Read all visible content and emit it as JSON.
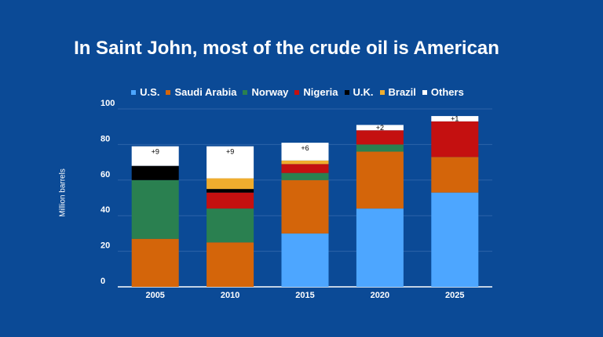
{
  "chart_data": {
    "type": "bar",
    "stacked": true,
    "title": "In Saint John, most of the crude oil is American",
    "ylabel": "Million barrels",
    "xlabel": "",
    "ylim": [
      0,
      100
    ],
    "yticks": [
      0,
      20,
      40,
      60,
      80,
      100
    ],
    "categories": [
      "2005",
      "2010",
      "2015",
      "2020",
      "2025"
    ],
    "series": [
      {
        "name": "U.S.",
        "color": "#4da6ff",
        "values": [
          0,
          0,
          30,
          44,
          53
        ]
      },
      {
        "name": "Saudi Arabia",
        "color": "#d4650a",
        "values": [
          27,
          25,
          30,
          32,
          20
        ]
      },
      {
        "name": "Norway",
        "color": "#2a8050",
        "values": [
          33,
          19,
          4,
          4,
          0
        ]
      },
      {
        "name": "Nigeria",
        "color": "#c41010",
        "values": [
          0,
          9,
          5,
          8,
          20
        ]
      },
      {
        "name": "U.K.",
        "color": "#000000",
        "values": [
          8,
          2,
          0,
          0,
          0
        ]
      },
      {
        "name": "Brazil",
        "color": "#f0ad2e",
        "values": [
          0,
          6,
          2,
          0,
          0
        ]
      },
      {
        "name": "Others",
        "color": "#ffffff",
        "values": [
          11,
          18,
          10,
          3,
          3
        ]
      }
    ],
    "annotations": [
      "+9",
      "+9",
      "+6",
      "+2",
      "+1"
    ],
    "legend_position": "top",
    "grid": true
  }
}
